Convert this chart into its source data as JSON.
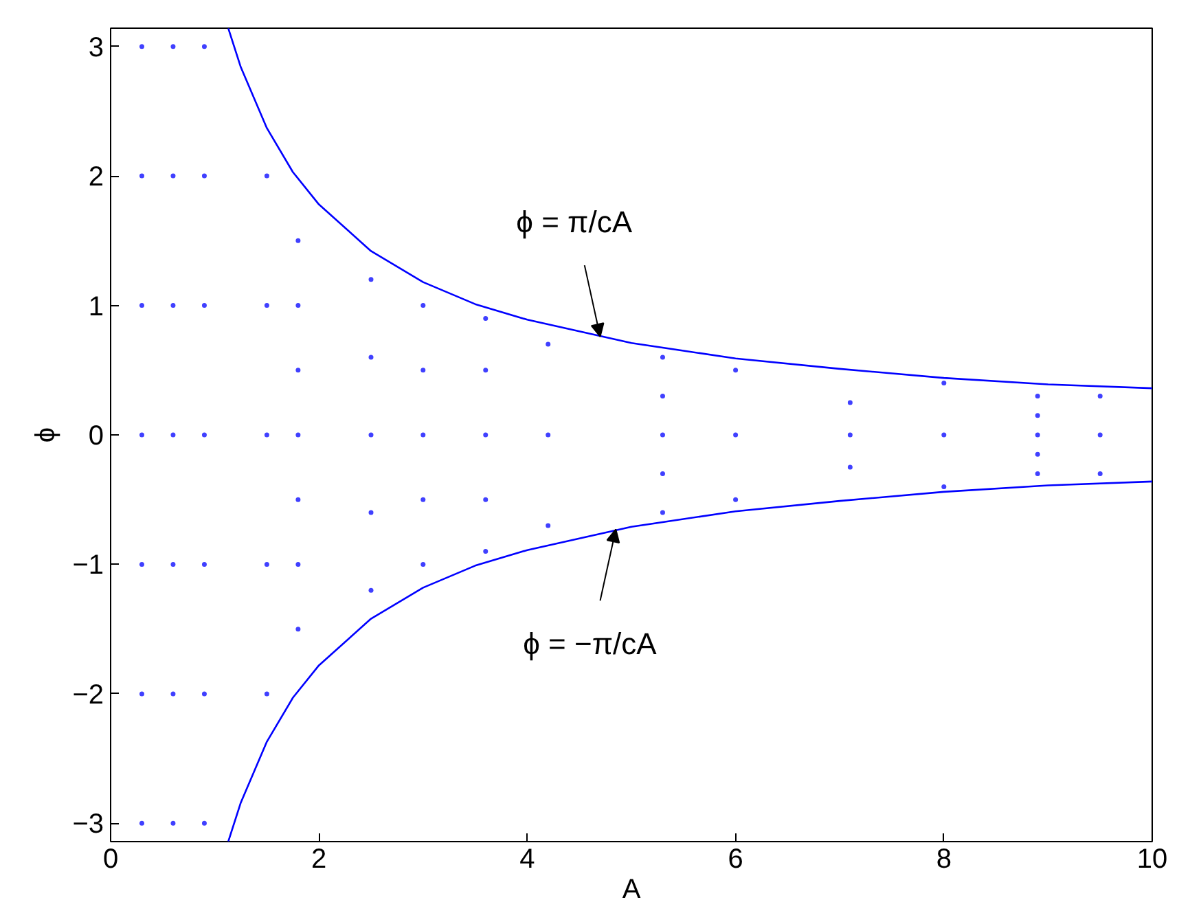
{
  "chart_data": {
    "type": "scatter",
    "xlabel": "A",
    "ylabel": "ϕ",
    "xlim": [
      0,
      10
    ],
    "xticks": [
      0,
      2,
      4,
      6,
      8,
      10
    ],
    "ylim": [
      -3.1416,
      3.1416
    ],
    "yticks": [
      -3,
      -2,
      -1,
      0,
      1,
      2,
      3
    ],
    "grid": false,
    "series": [
      {
        "type": "line",
        "marker": "none",
        "color": "#0000ff",
        "x": [
          1.13,
          1.25,
          1.5,
          1.75,
          2,
          2.5,
          3,
          3.5,
          4,
          5,
          6,
          7,
          8,
          9,
          10
        ],
        "values": [
          3.14,
          2.84,
          2.37,
          2.03,
          1.78,
          1.42,
          1.18,
          1.01,
          0.89,
          0.71,
          0.59,
          0.51,
          0.44,
          0.39,
          0.36
        ]
      },
      {
        "type": "line",
        "marker": "none",
        "color": "#0000ff",
        "x": [
          1.13,
          1.25,
          1.5,
          1.75,
          2,
          2.5,
          3,
          3.5,
          4,
          5,
          6,
          7,
          8,
          9,
          10
        ],
        "values": [
          -3.14,
          -2.84,
          -2.37,
          -2.03,
          -1.78,
          -1.42,
          -1.18,
          -1.01,
          -0.89,
          -0.71,
          -0.59,
          -0.51,
          -0.44,
          -0.39,
          -0.36
        ]
      },
      {
        "color": "#4040ff",
        "x": [
          0.3,
          0.3,
          0.3,
          0.3,
          0.3,
          0.3,
          0.3,
          0.6,
          0.6,
          0.6,
          0.6,
          0.6,
          0.6,
          0.6,
          0.9,
          0.9,
          0.9,
          0.9,
          0.9,
          0.9,
          0.9,
          1.5,
          1.5,
          1.5,
          1.5,
          1.5,
          1.8,
          1.8,
          1.8,
          1.8,
          1.8,
          1.8,
          1.8,
          2.5,
          2.5,
          2.5,
          2.5,
          2.5,
          3.0,
          3.0,
          3.0,
          3.0,
          3.0,
          3.6,
          3.6,
          3.6,
          3.6,
          3.6,
          4.2,
          4.2,
          4.2,
          5.3,
          5.3,
          5.3,
          5.3,
          5.3,
          6.0,
          6.0,
          6.0,
          7.1,
          7.1,
          7.1,
          8.0,
          8.0,
          8.0,
          8.9,
          8.9,
          8.9,
          8.9,
          8.9,
          9.5,
          9.5,
          9.5
        ],
        "values": [
          -3,
          -2,
          -1,
          0,
          1,
          2,
          3,
          -3,
          -2,
          -1,
          0,
          1,
          2,
          3,
          -3,
          -2,
          -1,
          0,
          1,
          2,
          3,
          -2,
          -1,
          0,
          1,
          2,
          -1.5,
          -1,
          -0.5,
          0,
          0.5,
          1,
          1.5,
          -1.2,
          -0.6,
          0,
          0.6,
          1.2,
          -1,
          -0.5,
          0,
          0.5,
          1,
          -0.9,
          -0.5,
          0,
          0.5,
          0.9,
          -0.7,
          0,
          0.7,
          -0.6,
          -0.3,
          0,
          0.3,
          0.6,
          -0.5,
          0,
          0.5,
          -0.25,
          0,
          0.25,
          -0.4,
          0,
          0.4,
          -0.3,
          -0.15,
          0,
          0.15,
          0.3,
          -0.3,
          0,
          0.3
        ]
      }
    ],
    "marker": "circle",
    "annotations": [
      {
        "text": "ϕ = π/cA",
        "x": 4.7,
        "y": 0.76
      },
      {
        "text": "ϕ = −π/cA",
        "x": 4.85,
        "y": -0.73
      }
    ]
  }
}
